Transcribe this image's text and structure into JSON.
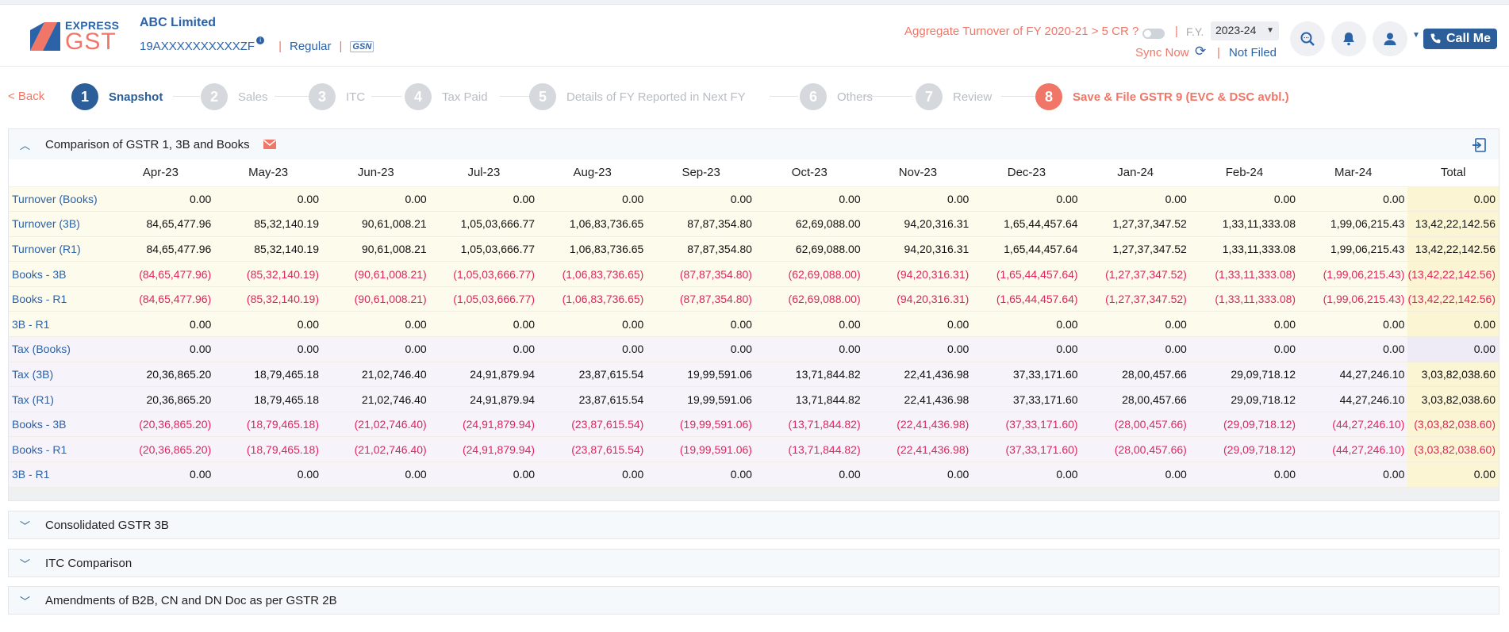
{
  "brand": {
    "top": "EXPRESS",
    "main": "GST"
  },
  "company": {
    "name": "ABC Limited",
    "gstin": "19AXXXXXXXXXXZF",
    "type": "Regular",
    "gsn": "GSN"
  },
  "header_right": {
    "aggregate_text": "Aggregate Turnover of FY 2020-21 > 5 CR ?",
    "fy_label": "F.Y.",
    "fy_value": "2023-24",
    "sync_label": "Sync Now",
    "status": "Not Filed",
    "callme_label": "Call Me"
  },
  "stepper": {
    "back_label": "< Back",
    "steps": [
      {
        "num": "1",
        "label": "Snapshot"
      },
      {
        "num": "2",
        "label": "Sales"
      },
      {
        "num": "3",
        "label": "ITC"
      },
      {
        "num": "4",
        "label": "Tax Paid"
      },
      {
        "num": "5",
        "label": "Details of FY Reported in Next FY"
      },
      {
        "num": "6",
        "label": "Others"
      },
      {
        "num": "7",
        "label": "Review"
      },
      {
        "num": "8",
        "label": "Save & File GSTR 9 (EVC & DSC avbl.)"
      }
    ]
  },
  "comparison": {
    "title": "Comparison of GSTR 1, 3B and Books",
    "columns": [
      "Apr-23",
      "May-23",
      "Jun-23",
      "Jul-23",
      "Aug-23",
      "Sep-23",
      "Oct-23",
      "Nov-23",
      "Dec-23",
      "Jan-24",
      "Feb-24",
      "Mar-24",
      "Total"
    ],
    "rows": [
      {
        "label": "Turnover (Books)",
        "group": "yel",
        "values": [
          "0.00",
          "0.00",
          "0.00",
          "0.00",
          "0.00",
          "0.00",
          "0.00",
          "0.00",
          "0.00",
          "0.00",
          "0.00",
          "0.00",
          "0.00"
        ]
      },
      {
        "label": "Turnover (3B)",
        "group": "yel",
        "values": [
          "84,65,477.96",
          "85,32,140.19",
          "90,61,008.21",
          "1,05,03,666.77",
          "1,06,83,736.65",
          "87,87,354.80",
          "62,69,088.00",
          "94,20,316.31",
          "1,65,44,457.64",
          "1,27,37,347.52",
          "1,33,11,333.08",
          "1,99,06,215.43",
          "13,42,22,142.56"
        ]
      },
      {
        "label": "Turnover (R1)",
        "group": "yel",
        "values": [
          "84,65,477.96",
          "85,32,140.19",
          "90,61,008.21",
          "1,05,03,666.77",
          "1,06,83,736.65",
          "87,87,354.80",
          "62,69,088.00",
          "94,20,316.31",
          "1,65,44,457.64",
          "1,27,37,347.52",
          "1,33,11,333.08",
          "1,99,06,215.43",
          "13,42,22,142.56"
        ]
      },
      {
        "label": "Books - 3B",
        "group": "yel",
        "neg": true,
        "values": [
          "(84,65,477.96)",
          "(85,32,140.19)",
          "(90,61,008.21)",
          "(1,05,03,666.77)",
          "(1,06,83,736.65)",
          "(87,87,354.80)",
          "(62,69,088.00)",
          "(94,20,316.31)",
          "(1,65,44,457.64)",
          "(1,27,37,347.52)",
          "(1,33,11,333.08)",
          "(1,99,06,215.43)",
          "(13,42,22,142.56)"
        ]
      },
      {
        "label": "Books - R1",
        "group": "yel",
        "neg": true,
        "values": [
          "(84,65,477.96)",
          "(85,32,140.19)",
          "(90,61,008.21)",
          "(1,05,03,666.77)",
          "(1,06,83,736.65)",
          "(87,87,354.80)",
          "(62,69,088.00)",
          "(94,20,316.31)",
          "(1,65,44,457.64)",
          "(1,27,37,347.52)",
          "(1,33,11,333.08)",
          "(1,99,06,215.43)",
          "(13,42,22,142.56)"
        ]
      },
      {
        "label": "3B - R1",
        "group": "yel",
        "values": [
          "0.00",
          "0.00",
          "0.00",
          "0.00",
          "0.00",
          "0.00",
          "0.00",
          "0.00",
          "0.00",
          "0.00",
          "0.00",
          "0.00",
          "0.00"
        ]
      },
      {
        "label": "Tax (Books)",
        "group": "lav",
        "values": [
          "0.00",
          "0.00",
          "0.00",
          "0.00",
          "0.00",
          "0.00",
          "0.00",
          "0.00",
          "0.00",
          "0.00",
          "0.00",
          "0.00",
          "0.00"
        ]
      },
      {
        "label": "Tax (3B)",
        "group": "lav",
        "values": [
          "20,36,865.20",
          "18,79,465.18",
          "21,02,746.40",
          "24,91,879.94",
          "23,87,615.54",
          "19,99,591.06",
          "13,71,844.82",
          "22,41,436.98",
          "37,33,171.60",
          "28,00,457.66",
          "29,09,718.12",
          "44,27,246.10",
          "3,03,82,038.60"
        ]
      },
      {
        "label": "Tax (R1)",
        "group": "lav",
        "values": [
          "20,36,865.20",
          "18,79,465.18",
          "21,02,746.40",
          "24,91,879.94",
          "23,87,615.54",
          "19,99,591.06",
          "13,71,844.82",
          "22,41,436.98",
          "37,33,171.60",
          "28,00,457.66",
          "29,09,718.12",
          "44,27,246.10",
          "3,03,82,038.60"
        ]
      },
      {
        "label": "Books - 3B",
        "group": "lav",
        "neg": true,
        "values": [
          "(20,36,865.20)",
          "(18,79,465.18)",
          "(21,02,746.40)",
          "(24,91,879.94)",
          "(23,87,615.54)",
          "(19,99,591.06)",
          "(13,71,844.82)",
          "(22,41,436.98)",
          "(37,33,171.60)",
          "(28,00,457.66)",
          "(29,09,718.12)",
          "(44,27,246.10)",
          "(3,03,82,038.60)"
        ]
      },
      {
        "label": "Books - R1",
        "group": "lav",
        "neg": true,
        "values": [
          "(20,36,865.20)",
          "(18,79,465.18)",
          "(21,02,746.40)",
          "(24,91,879.94)",
          "(23,87,615.54)",
          "(19,99,591.06)",
          "(13,71,844.82)",
          "(22,41,436.98)",
          "(37,33,171.60)",
          "(28,00,457.66)",
          "(29,09,718.12)",
          "(44,27,246.10)",
          "(3,03,82,038.60)"
        ]
      },
      {
        "label": "3B - R1",
        "group": "lav",
        "values": [
          "0.00",
          "0.00",
          "0.00",
          "0.00",
          "0.00",
          "0.00",
          "0.00",
          "0.00",
          "0.00",
          "0.00",
          "0.00",
          "0.00",
          "0.00"
        ]
      }
    ]
  },
  "accordions": [
    {
      "title": "Consolidated GSTR 3B"
    },
    {
      "title": "ITC Comparison"
    },
    {
      "title": "Amendments of B2B, CN and DN Doc as per GSTR 2B"
    }
  ],
  "colors": {
    "brand_blue": "#2c5e99",
    "accent_coral": "#f07767",
    "negative_red": "#e0245e"
  },
  "icons": [
    "info-icon",
    "sync-icon",
    "search-icon",
    "bell-icon",
    "user-icon",
    "phone-icon",
    "mail-icon",
    "export-icon",
    "chevron-up-icon",
    "chevron-down-icon"
  ]
}
